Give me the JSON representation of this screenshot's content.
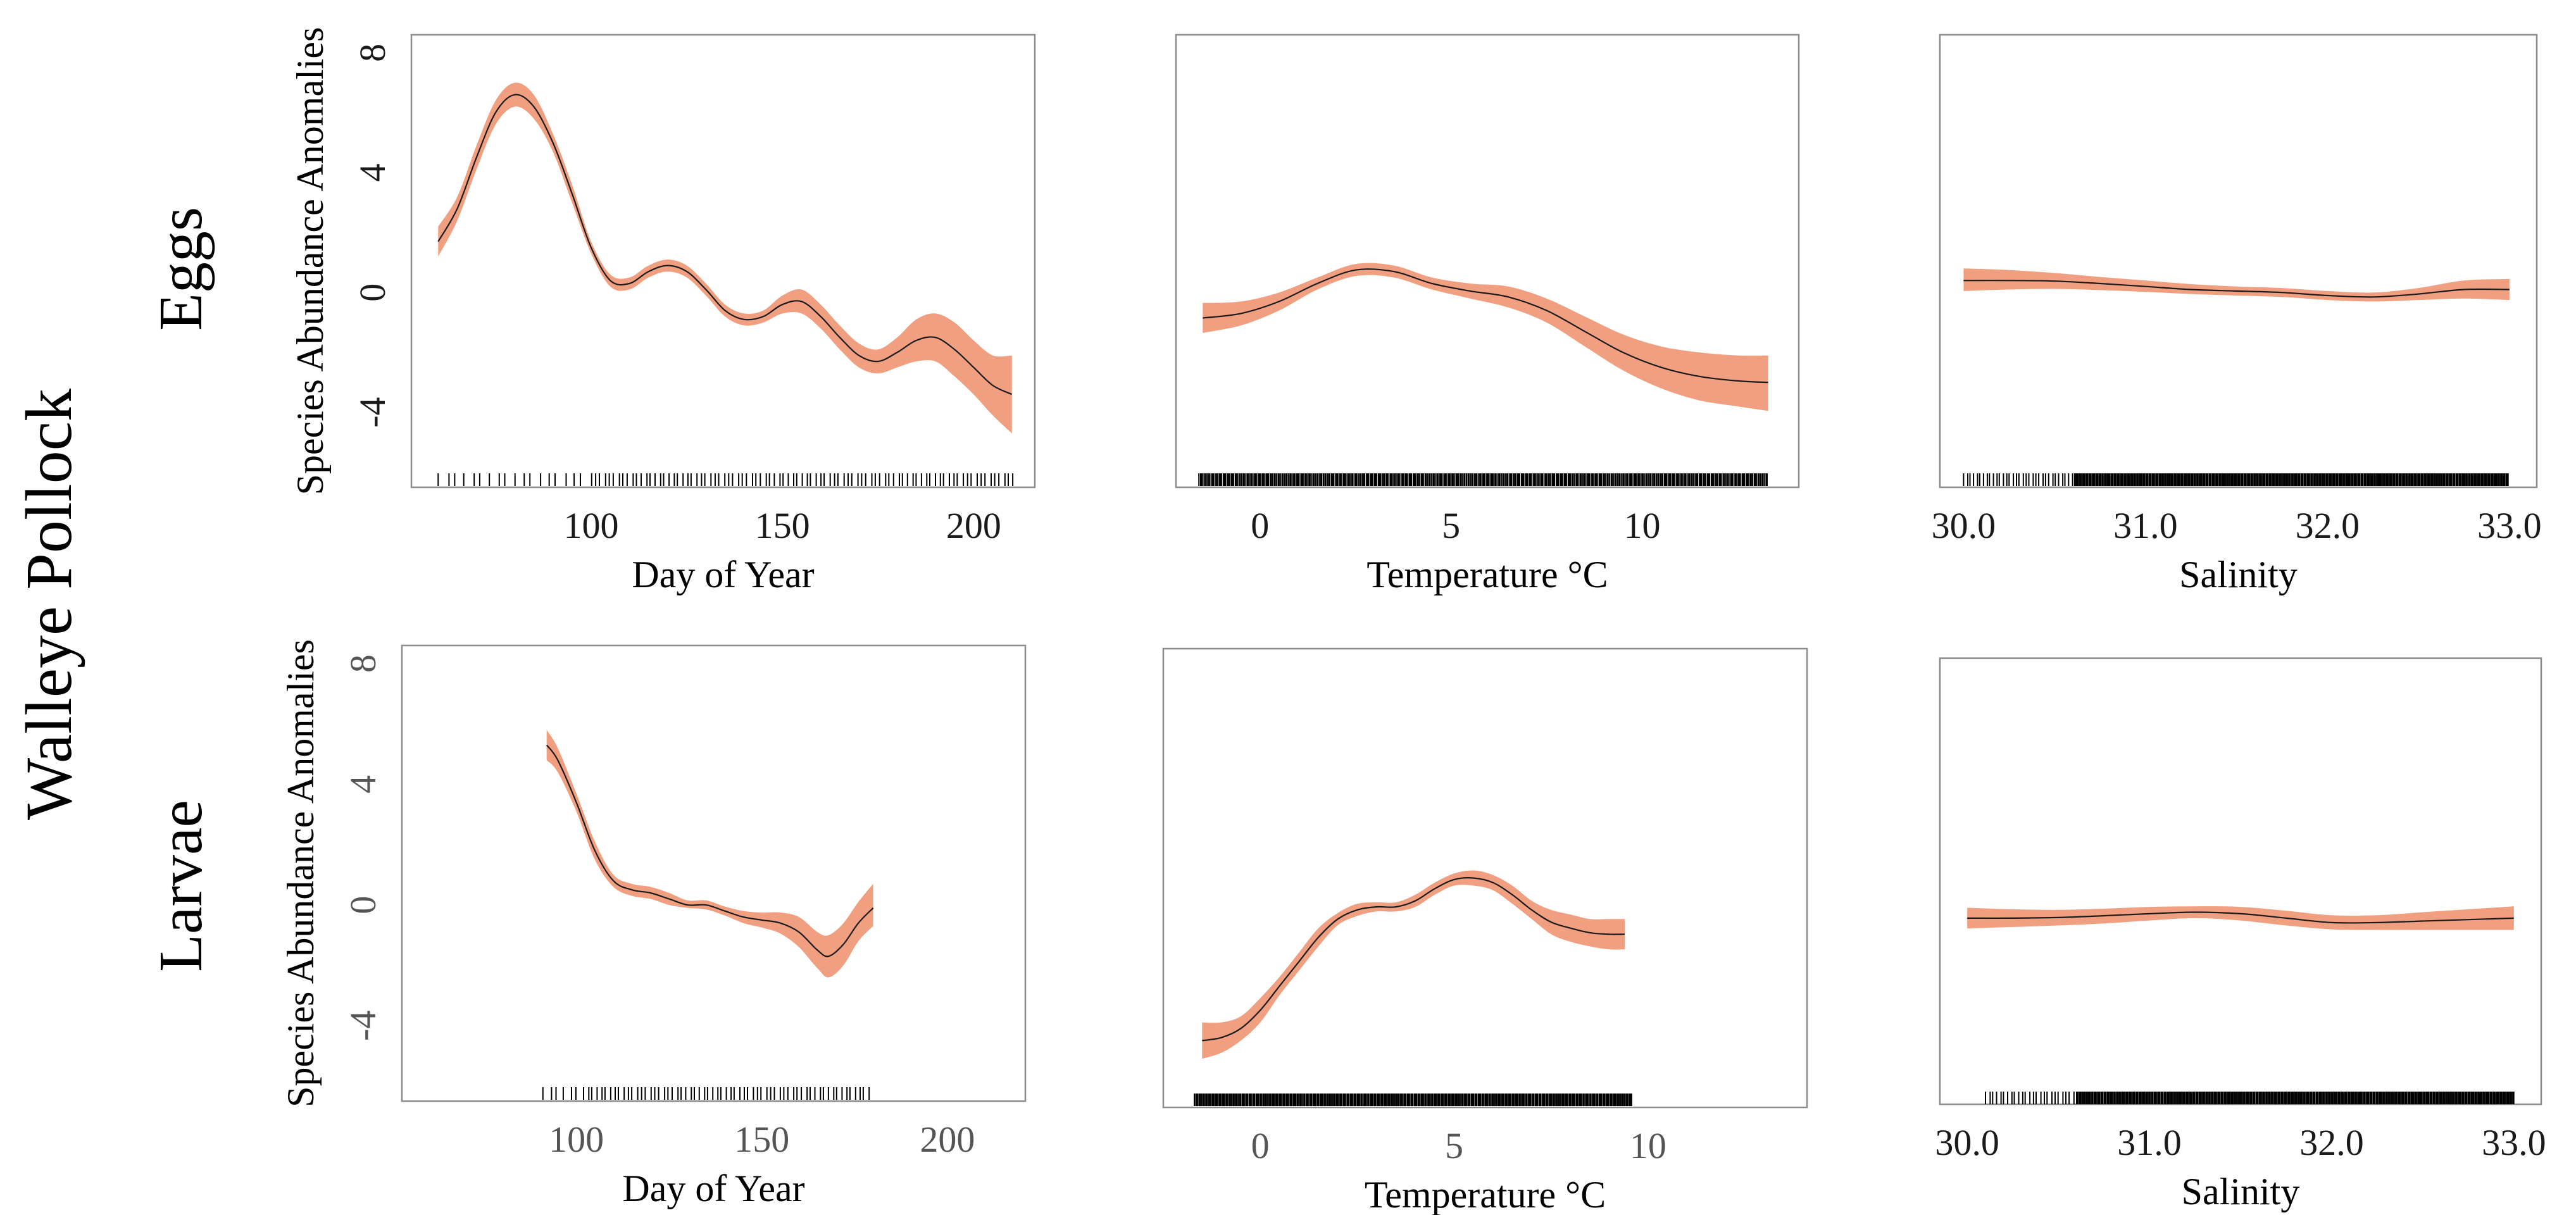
{
  "figure": {
    "species": "Walleye Pollock",
    "rows": [
      "Eggs",
      "Larvae"
    ]
  },
  "colors": {
    "band": "#f0a080",
    "line": "#1a1a1a",
    "frame": "#8c8c8c",
    "rug": "#000000",
    "larvae_tick_text": "#555555"
  },
  "chart_data": [
    {
      "type": "line",
      "row": "Eggs",
      "panel": "Day of Year",
      "xlabel": "Day of Year",
      "ylabel": "Species Abundance Anomalies",
      "xlim": [
        53,
        216
      ],
      "ylim": [
        -6.5,
        8.6
      ],
      "xticks": [
        100,
        150,
        200
      ],
      "xtick_labels": [
        "100",
        "150",
        "200"
      ],
      "yticks": [
        -4,
        0,
        4,
        8
      ],
      "ytick_labels": [
        "-4",
        "0",
        "4",
        "8"
      ],
      "series": [
        {
          "x": [
            60,
            65,
            70,
            75,
            80,
            85,
            90,
            95,
            100,
            105,
            110,
            115,
            120,
            125,
            130,
            135,
            140,
            145,
            150,
            155,
            160,
            165,
            170,
            175,
            180,
            185,
            190,
            195,
            200,
            205,
            210
          ],
          "y": [
            1.7,
            2.8,
            4.5,
            6.0,
            6.6,
            6.2,
            5.0,
            3.3,
            1.5,
            0.4,
            0.3,
            0.7,
            0.9,
            0.7,
            0.1,
            -0.6,
            -0.9,
            -0.8,
            -0.4,
            -0.3,
            -0.8,
            -1.5,
            -2.1,
            -2.3,
            -2.0,
            -1.6,
            -1.5,
            -1.9,
            -2.5,
            -3.1,
            -3.4
          ],
          "lower": [
            1.2,
            2.4,
            4.1,
            5.6,
            6.2,
            5.8,
            4.7,
            3.0,
            1.3,
            0.2,
            0.1,
            0.5,
            0.7,
            0.5,
            -0.1,
            -0.8,
            -1.1,
            -1.0,
            -0.7,
            -0.7,
            -1.2,
            -1.9,
            -2.5,
            -2.7,
            -2.5,
            -2.3,
            -2.3,
            -2.8,
            -3.4,
            -4.1,
            -4.7
          ],
          "upper": [
            2.2,
            3.2,
            4.9,
            6.4,
            7.0,
            6.6,
            5.3,
            3.6,
            1.7,
            0.6,
            0.5,
            0.9,
            1.1,
            0.9,
            0.3,
            -0.4,
            -0.7,
            -0.6,
            -0.1,
            0.1,
            -0.4,
            -1.1,
            -1.7,
            -1.9,
            -1.5,
            -0.9,
            -0.7,
            -1.0,
            -1.6,
            -2.1,
            -2.1
          ]
        }
      ],
      "rug": {
        "from": 60,
        "to": 211,
        "dense_from": 100,
        "step_sparse": 2.2,
        "step_dense": 1.2
      }
    },
    {
      "type": "line",
      "row": "Eggs",
      "panel": "Temperature",
      "xlabel": "Temperature °C",
      "ylabel": "",
      "xlim": [
        -2.2,
        14.1
      ],
      "ylim": [
        -6.5,
        8.6
      ],
      "xticks": [
        0,
        5,
        10
      ],
      "xtick_labels": [
        "0",
        "5",
        "10"
      ],
      "yticks": [],
      "ytick_labels": [],
      "series": [
        {
          "x": [
            -1.5,
            -0.5,
            0.5,
            1.5,
            2.5,
            3.5,
            4.5,
            5.5,
            6.5,
            7.5,
            8.5,
            9.5,
            10.5,
            11.5,
            12.5,
            13.3
          ],
          "y": [
            -0.85,
            -0.7,
            -0.3,
            0.3,
            0.75,
            0.7,
            0.3,
            0.05,
            -0.15,
            -0.6,
            -1.3,
            -2.0,
            -2.5,
            -2.8,
            -2.95,
            -3.0
          ],
          "lower": [
            -1.35,
            -1.1,
            -0.6,
            0.1,
            0.55,
            0.5,
            0.1,
            -0.2,
            -0.5,
            -1.0,
            -1.8,
            -2.6,
            -3.2,
            -3.6,
            -3.8,
            -3.95
          ],
          "upper": [
            -0.35,
            -0.3,
            0.0,
            0.5,
            0.95,
            0.9,
            0.5,
            0.3,
            0.2,
            -0.2,
            -0.8,
            -1.4,
            -1.8,
            -2.0,
            -2.1,
            -2.1
          ]
        }
      ],
      "rug": {
        "from": -1.6,
        "to": 13.3,
        "dense_from": -1.6,
        "step_sparse": 0.07,
        "step_dense": 0.035
      }
    },
    {
      "type": "line",
      "row": "Eggs",
      "panel": "Salinity",
      "xlabel": "Salinity",
      "ylabel": "",
      "xlim": [
        29.87,
        33.15
      ],
      "ylim": [
        -6.5,
        8.6
      ],
      "xticks": [
        30,
        31,
        32,
        33
      ],
      "xtick_labels": [
        "30.0",
        "31.0",
        "32.0",
        "33.0"
      ],
      "yticks": [],
      "ytick_labels": [],
      "series": [
        {
          "x": [
            30.0,
            30.25,
            30.5,
            30.75,
            31.0,
            31.25,
            31.5,
            31.75,
            32.0,
            32.25,
            32.5,
            32.75,
            33.0
          ],
          "y": [
            0.4,
            0.4,
            0.38,
            0.3,
            0.2,
            0.1,
            0.05,
            0.0,
            -0.1,
            -0.15,
            -0.05,
            0.1,
            0.1
          ],
          "lower": [
            0.05,
            0.1,
            0.12,
            0.08,
            0.02,
            -0.05,
            -0.1,
            -0.15,
            -0.25,
            -0.3,
            -0.25,
            -0.2,
            -0.25
          ],
          "upper": [
            0.8,
            0.75,
            0.65,
            0.52,
            0.4,
            0.28,
            0.2,
            0.15,
            0.05,
            0.0,
            0.15,
            0.4,
            0.45
          ]
        }
      ],
      "rug": {
        "from": 30.0,
        "to": 33.0,
        "dense_from": 30.6,
        "step_sparse": 0.018,
        "step_dense": 0.006
      }
    },
    {
      "type": "line",
      "row": "Larvae",
      "panel": "Day of Year",
      "xlabel": "Day of Year",
      "ylabel": "Species Abundance Anomalies",
      "xlim": [
        53,
        221
      ],
      "ylim": [
        -6.5,
        8.6
      ],
      "xticks": [
        100,
        150,
        200
      ],
      "xtick_labels": [
        "100",
        "150",
        "200"
      ],
      "yticks": [
        -4,
        0,
        4,
        8
      ],
      "ytick_labels": [
        "-4",
        "0",
        "4",
        "8"
      ],
      "series": [
        {
          "x": [
            92,
            95,
            100,
            105,
            110,
            115,
            120,
            125,
            130,
            135,
            140,
            145,
            150,
            155,
            160,
            165,
            168,
            172,
            176,
            180
          ],
          "y": [
            5.3,
            4.8,
            3.4,
            1.8,
            0.8,
            0.5,
            0.4,
            0.2,
            0.0,
            0.0,
            -0.2,
            -0.4,
            -0.5,
            -0.6,
            -0.9,
            -1.5,
            -1.7,
            -1.3,
            -0.6,
            -0.1
          ],
          "lower": [
            4.8,
            4.4,
            3.1,
            1.5,
            0.6,
            0.3,
            0.2,
            0.0,
            -0.1,
            -0.15,
            -0.35,
            -0.6,
            -0.75,
            -0.95,
            -1.4,
            -2.1,
            -2.4,
            -2.0,
            -1.2,
            -0.7
          ],
          "upper": [
            5.8,
            5.2,
            3.7,
            2.1,
            1.0,
            0.7,
            0.6,
            0.4,
            0.15,
            0.15,
            -0.05,
            -0.2,
            -0.25,
            -0.25,
            -0.4,
            -0.9,
            -1.0,
            -0.6,
            0.1,
            0.7
          ]
        }
      ],
      "rug": {
        "from": 91,
        "to": 180,
        "dense_from": 100,
        "step_sparse": 1.8,
        "step_dense": 1.2
      }
    },
    {
      "type": "line",
      "row": "Larvae",
      "panel": "Temperature",
      "xlabel": "Temperature °C",
      "ylabel": "",
      "xlim": [
        -2.5,
        14.1
      ],
      "ylim": [
        -6.5,
        8.6
      ],
      "xticks": [
        0,
        5,
        10
      ],
      "xtick_labels": [
        "0",
        "5",
        "10"
      ],
      "yticks": [],
      "ytick_labels": [],
      "series": [
        {
          "x": [
            -1.5,
            -1.0,
            -0.5,
            0.0,
            0.5,
            1.0,
            1.5,
            2.0,
            2.5,
            3.0,
            3.5,
            4.0,
            4.5,
            5.0,
            5.5,
            6.0,
            6.5,
            7.0,
            7.5,
            8.0,
            8.5,
            9.0,
            9.4
          ],
          "y": [
            -4.3,
            -4.2,
            -3.9,
            -3.3,
            -2.5,
            -1.7,
            -0.9,
            -0.3,
            0.0,
            0.1,
            0.1,
            0.3,
            0.7,
            1.0,
            1.05,
            0.9,
            0.5,
            0.0,
            -0.4,
            -0.6,
            -0.75,
            -0.8,
            -0.8
          ],
          "lower": [
            -4.9,
            -4.7,
            -4.3,
            -3.7,
            -2.8,
            -2.0,
            -1.2,
            -0.5,
            -0.2,
            -0.05,
            -0.05,
            0.1,
            0.5,
            0.8,
            0.8,
            0.65,
            0.2,
            -0.3,
            -0.8,
            -1.05,
            -1.2,
            -1.3,
            -1.3
          ],
          "upper": [
            -3.7,
            -3.7,
            -3.5,
            -2.9,
            -2.2,
            -1.4,
            -0.6,
            -0.1,
            0.2,
            0.25,
            0.25,
            0.5,
            0.9,
            1.2,
            1.3,
            1.15,
            0.8,
            0.3,
            0.0,
            -0.15,
            -0.3,
            -0.3,
            -0.3
          ]
        }
      ],
      "rug": {
        "from": -1.7,
        "to": 9.6,
        "dense_from": -1.7,
        "step_sparse": 0.06,
        "step_dense": 0.03
      }
    },
    {
      "type": "line",
      "row": "Larvae",
      "panel": "Salinity",
      "xlabel": "Salinity",
      "ylabel": "",
      "xlim": [
        29.85,
        33.15
      ],
      "ylim": [
        -6.5,
        8.6
      ],
      "xticks": [
        30,
        31,
        32,
        33
      ],
      "xtick_labels": [
        "30.0",
        "31.0",
        "32.0",
        "33.0"
      ],
      "yticks": [],
      "ytick_labels": [],
      "series": [
        {
          "x": [
            30.0,
            30.25,
            30.5,
            30.75,
            31.0,
            31.25,
            31.5,
            31.75,
            32.0,
            32.25,
            32.5,
            32.75,
            33.0
          ],
          "y": [
            -0.2,
            -0.2,
            -0.18,
            -0.12,
            -0.05,
            0.0,
            -0.05,
            -0.2,
            -0.35,
            -0.35,
            -0.3,
            -0.25,
            -0.2
          ],
          "lower": [
            -0.55,
            -0.5,
            -0.45,
            -0.38,
            -0.28,
            -0.2,
            -0.28,
            -0.45,
            -0.58,
            -0.6,
            -0.6,
            -0.6,
            -0.6
          ],
          "upper": [
            0.15,
            0.1,
            0.08,
            0.12,
            0.18,
            0.2,
            0.18,
            0.05,
            -0.1,
            -0.1,
            0.0,
            0.1,
            0.2
          ]
        }
      ],
      "rug": {
        "from": 30.1,
        "to": 33.0,
        "dense_from": 30.6,
        "step_sparse": 0.02,
        "step_dense": 0.006
      }
    }
  ]
}
